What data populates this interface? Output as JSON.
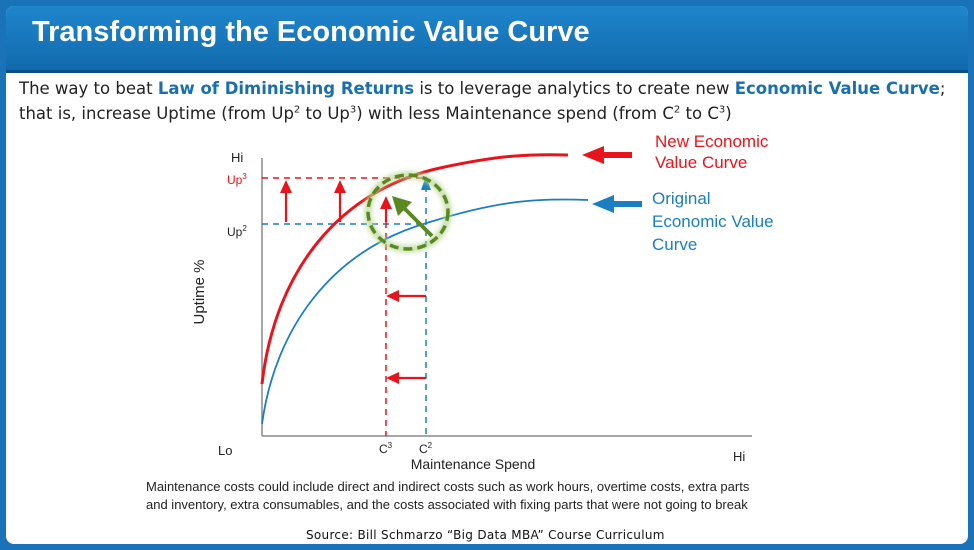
{
  "slide": {
    "title": "Transforming the Economic Value Curve",
    "intro": {
      "p1": "The way to beat ",
      "hl1": "Law of Diminishing Returns",
      "p2": " is to leverage analytics to create new ",
      "hl2": "Economic Value Curve",
      "p3": "; that is, increase Uptime (from Up",
      "sup1": "2",
      "p4": " to Up",
      "sup2": "3",
      "p5": ") with less Maintenance spend (from C",
      "sup3": "2",
      "p6": " to C",
      "sup4": "3",
      "p7": ")"
    },
    "footnote_line1": "Maintenance costs could include direct and indirect costs such as work hours, overtime costs, extra parts",
    "footnote_line2": "and inventory, extra consumables, and the costs associated with fixing parts that were not going to break",
    "source": "Source:  Bill Schmarzo “Big Data MBA” Course Curriculum"
  },
  "diagram": {
    "y_axis_label": "Uptime %",
    "x_axis_label": "Maintenance Spend",
    "y_hi": "Hi",
    "x_lo": "Lo",
    "x_hi": "Hi",
    "up3": {
      "base": "Up",
      "sup": "3"
    },
    "up2": {
      "base": "Up",
      "sup": "2"
    },
    "c3": {
      "base": "C",
      "sup": "3"
    },
    "c2": {
      "base": "C",
      "sup": "2"
    },
    "new_curve_label": [
      "New Economic",
      "Value Curve"
    ],
    "original_curve_label": [
      "Original",
      "Economic Value",
      "Curve"
    ],
    "colors": {
      "new_curve": "#e8141b",
      "original_curve": "#1a7ec0",
      "highlight_circle": "#5a8a1f",
      "title_bar": "#1a73b8"
    }
  }
}
